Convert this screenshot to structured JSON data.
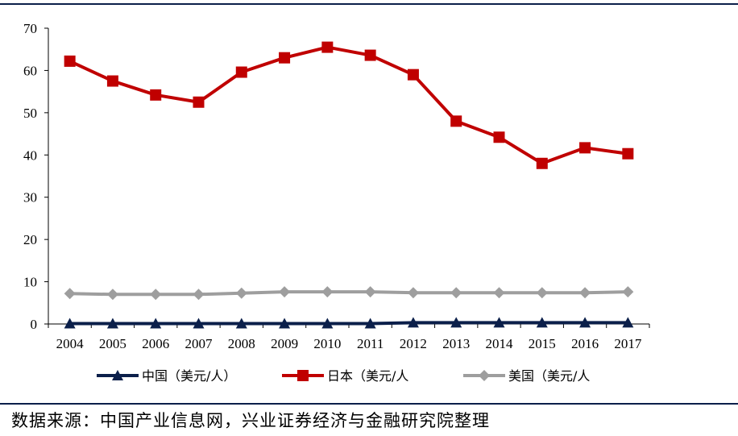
{
  "chart_data": {
    "type": "line",
    "title": "",
    "xlabel": "",
    "ylabel": "",
    "categories": [
      "2004",
      "2005",
      "2006",
      "2007",
      "2008",
      "2009",
      "2010",
      "2011",
      "2012",
      "2013",
      "2014",
      "2015",
      "2016",
      "2017"
    ],
    "ylim": [
      0,
      70
    ],
    "yticks": [
      0,
      10,
      20,
      30,
      40,
      50,
      60,
      70
    ],
    "grid": false,
    "legend_position": "bottom",
    "series": [
      {
        "name": "中国（美元/人）",
        "color": "#0b1f4a",
        "marker": "triangle",
        "values": [
          0.1,
          0.1,
          0.1,
          0.1,
          0.1,
          0.1,
          0.1,
          0.1,
          0.3,
          0.3,
          0.3,
          0.3,
          0.3,
          0.3
        ]
      },
      {
        "name": "日本（美元/人",
        "color": "#c00000",
        "marker": "square",
        "values": [
          62.2,
          57.5,
          54.2,
          52.5,
          59.6,
          63.0,
          65.5,
          63.6,
          59.0,
          48.0,
          44.2,
          38.0,
          41.7,
          40.3
        ]
      },
      {
        "name": "美国（美元/人",
        "color": "#9e9e9e",
        "marker": "diamond",
        "values": [
          7.2,
          7.0,
          7.0,
          7.0,
          7.3,
          7.6,
          7.6,
          7.6,
          7.4,
          7.4,
          7.4,
          7.4,
          7.4,
          7.6
        ]
      }
    ]
  },
  "source_text": "数据来源：中国产业信息网，兴业证券经济与金融研究院整理"
}
